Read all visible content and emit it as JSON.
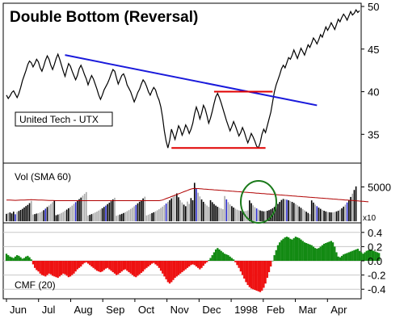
{
  "chart_data": {
    "type": "line",
    "title": "Double Bottom (Reversal)",
    "label": "United Tech - UTX",
    "x_tick_labels": [
      "Jun",
      "Jul",
      "Aug",
      "Sep",
      "Oct",
      "Nov",
      "Dec",
      "1998",
      "Feb",
      "Mar",
      "Apr"
    ],
    "price": {
      "ylim": [
        32,
        50
      ],
      "ticks": [
        35,
        40,
        45,
        50
      ],
      "values": [
        39.6,
        39.2,
        39.5,
        39.9,
        40.1,
        39.7,
        39.3,
        39.8,
        40.5,
        41.3,
        41.9,
        42.5,
        43.2,
        43.6,
        43.4,
        42.9,
        43.3,
        43.8,
        43.5,
        42.8,
        42.4,
        43.0,
        43.7,
        44.2,
        43.8,
        43.1,
        42.6,
        43.2,
        43.9,
        44.4,
        43.8,
        43.1,
        42.4,
        41.8,
        42.6,
        43.3,
        43.0,
        42.4,
        41.9,
        41.4,
        41.9,
        42.7,
        43.1,
        42.6,
        42.0,
        41.5,
        40.8,
        41.4,
        41.9,
        41.5,
        40.9,
        40.3,
        39.6,
        39.1,
        39.6,
        40.2,
        40.6,
        41.0,
        41.5,
        42.1,
        42.6,
        42.4,
        41.6,
        40.9,
        41.4,
        41.9,
        42.1,
        41.6,
        40.8,
        40.4,
        40.0,
        39.4,
        38.8,
        39.3,
        39.9,
        40.3,
        40.9,
        41.4,
        41.1,
        40.6,
        40.0,
        39.6,
        40.1,
        40.5,
        40.2,
        39.5,
        39.0,
        38.2,
        37.0,
        35.4,
        34.2,
        33.4,
        34.3,
        35.6,
        35.0,
        34.4,
        35.2,
        36.0,
        35.6,
        34.9,
        35.4,
        36.1,
        35.7,
        35.1,
        35.6,
        36.3,
        37.4,
        38.2,
        37.6,
        36.8,
        37.5,
        38.4,
        38.0,
        37.2,
        36.3,
        36.9,
        37.7,
        38.6,
        39.4,
        39.8,
        39.3,
        38.7,
        38.0,
        37.3,
        36.6,
        36.0,
        35.4,
        35.9,
        36.5,
        36.0,
        35.4,
        34.8,
        35.2,
        35.8,
        35.3,
        34.6,
        34.0,
        34.5,
        35.1,
        34.7,
        34.2,
        33.6,
        33.4,
        34.0,
        35.0,
        35.6,
        35.2,
        36.0,
        36.8,
        37.6,
        38.8,
        40.0,
        40.8,
        41.4,
        42.0,
        42.7,
        43.1,
        42.8,
        43.4,
        44.0,
        43.8,
        44.3,
        44.9,
        44.4,
        43.9,
        44.5,
        45.1,
        44.7,
        44.3,
        44.9,
        45.5,
        45.2,
        45.7,
        46.3,
        46.0,
        45.6,
        46.1,
        46.7,
        46.4,
        47.0,
        47.6,
        47.2,
        47.6,
        48.1,
        47.7,
        47.3,
        47.9,
        48.5,
        48.2,
        48.7,
        49.1,
        48.8,
        48.4,
        48.9,
        49.4,
        49.0,
        49.2,
        49.6,
        49.3,
        49.5
      ]
    },
    "trendline": {
      "from": 44.3,
      "to": 38.4
    },
    "resistance": 40.0,
    "support": 33.4,
    "volume": {
      "label": "Vol (SMA 60)",
      "ymax": 8000,
      "ticks": [
        5000
      ],
      "multiplier_label": "x10",
      "values": [
        1080,
        1210,
        1280,
        1140,
        1400,
        1020,
        1360,
        1500,
        1650,
        1810,
        2010,
        2210,
        2380,
        2640,
        2970,
        980,
        1040,
        1120,
        1180,
        1290,
        1430,
        1610,
        1840,
        2080,
        2300,
        2520,
        2780,
        3050,
        880,
        980,
        1080,
        1210,
        1350,
        1520,
        1700,
        1900,
        2080,
        2280,
        2530,
        2780,
        2960,
        3220,
        3450,
        3730,
        4000,
        4250,
        830,
        930,
        1040,
        1160,
        1280,
        1410,
        1560,
        1720,
        1900,
        2090,
        2280,
        2500,
        2710,
        2920,
        3180,
        3420,
        800,
        890,
        980,
        1080,
        1200,
        1330,
        1470,
        1620,
        1800,
        1970,
        2180,
        2380,
        2610,
        2850,
        3070,
        3330,
        3580,
        850,
        960,
        1070,
        1190,
        1310,
        1450,
        1600,
        1760,
        1940,
        2130,
        2350,
        2580,
        2820,
        3070,
        3330,
        3590,
        3860,
        4060,
        3500,
        3090,
        2740,
        2420,
        2190,
        2870,
        2520,
        3380,
        3060,
        5600,
        4800,
        4160,
        3620,
        3180,
        2830,
        2540,
        2290,
        2100,
        3070,
        2780,
        2510,
        2280,
        2110,
        1960,
        1860,
        1750,
        3680,
        3190,
        2780,
        2460,
        2200,
        2000,
        1840,
        1690,
        1590,
        1510,
        1460,
        1460,
        1500,
        1580,
        3040,
        2640,
        2320,
        2060,
        1870,
        1700,
        1570,
        1490,
        1450,
        1470,
        1530,
        1620,
        1740,
        1890,
        2080,
        2290,
        2530,
        2810,
        3100,
        3250,
        3210,
        3140,
        3060,
        2940,
        2820,
        2670,
        2510,
        2330,
        2140,
        1950,
        1760,
        1570,
        1390,
        1210,
        1040,
        3040,
        2720,
        2440,
        2200,
        1990,
        1810,
        1660,
        1530,
        1430,
        1360,
        1310,
        1290,
        1300,
        1350,
        1430,
        1540,
        1700,
        1890,
        2130,
        2420,
        2740,
        3100,
        3540,
        4020,
        4560,
        5080
      ],
      "sma": [
        3100,
        3090,
        3080,
        3070,
        3060,
        3050,
        3060,
        3070,
        3080,
        3090,
        3100,
        3110,
        3120,
        3130,
        3140,
        3130,
        3120,
        3110,
        3100,
        3090,
        3080,
        3070,
        3060,
        3050,
        3040,
        3030,
        3020,
        3010,
        3000,
        3000,
        3000,
        3000,
        3000,
        3000,
        3000,
        3000,
        3000,
        3000,
        3000,
        3000,
        3000,
        3000,
        3000,
        3000,
        3000,
        3000,
        3000,
        3000,
        3000,
        3000,
        3000,
        3000,
        3000,
        3000,
        3000,
        3000,
        3000,
        3000,
        3000,
        3000,
        3000,
        3000,
        3000,
        3000,
        3000,
        3000,
        3000,
        3000,
        3000,
        3000,
        3000,
        3000,
        3000,
        3000,
        3000,
        3000,
        3000,
        3000,
        3000,
        3000,
        3000,
        3000,
        3000,
        3000,
        3000,
        3000,
        3000,
        3050,
        3100,
        3200,
        3300,
        3400,
        3500,
        3600,
        3700,
        3800,
        3900,
        4000,
        4100,
        4200,
        4300,
        4400,
        4500,
        4600,
        4700,
        4750,
        4800,
        4780,
        4760,
        4740,
        4720,
        4700,
        4680,
        4660,
        4640,
        4620,
        4600,
        4580,
        4560,
        4540,
        4520,
        4500,
        4480,
        4460,
        4440,
        4420,
        4400,
        4380,
        4360,
        4340,
        4320,
        4300,
        4280,
        4260,
        4240,
        4220,
        4200,
        4180,
        4160,
        4140,
        4120,
        4100,
        4080,
        4060,
        4040,
        4020,
        4000,
        3980,
        3960,
        3940,
        3920,
        3900,
        3880,
        3860,
        3840,
        3820,
        3800,
        3780,
        3760,
        3740,
        3720,
        3700,
        3680,
        3660,
        3640,
        3620,
        3600,
        3580,
        3560,
        3540,
        3520,
        3500,
        3480,
        3460,
        3440,
        3420,
        3400,
        3380,
        3360,
        3340,
        3320,
        3300,
        3280,
        3260,
        3240,
        3220,
        3200,
        3180,
        3160,
        3140,
        3120,
        3100,
        3080,
        3060,
        3040,
        3020,
        3000,
        2980,
        2960,
        2940,
        2920,
        2900,
        2880,
        2860,
        2840
      ]
    },
    "cmf": {
      "label": "CMF (20)",
      "ylim": [
        -0.5,
        0.5
      ],
      "ticks": [
        0.4,
        0.2,
        0.0,
        -0.2,
        -0.4
      ],
      "tick_labels": [
        "0.4",
        "0.2",
        "0.0",
        "-0.2",
        "-0.4"
      ],
      "values": [
        0.1,
        0.08,
        0.06,
        0.05,
        0.04,
        0.06,
        0.08,
        0.07,
        0.05,
        0.03,
        0.04,
        0.06,
        0.07,
        0.05,
        0.02,
        -0.05,
        -0.1,
        -0.13,
        -0.15,
        -0.18,
        -0.2,
        -0.21,
        -0.22,
        -0.2,
        -0.18,
        -0.19,
        -0.21,
        -0.22,
        -0.23,
        -0.24,
        -0.22,
        -0.2,
        -0.18,
        -0.19,
        -0.21,
        -0.23,
        -0.22,
        -0.2,
        -0.18,
        -0.15,
        -0.12,
        -0.1,
        -0.08,
        -0.05,
        -0.03,
        -0.02,
        -0.04,
        -0.06,
        -0.08,
        -0.1,
        -0.12,
        -0.14,
        -0.15,
        -0.16,
        -0.15,
        -0.13,
        -0.11,
        -0.1,
        -0.12,
        -0.14,
        -0.16,
        -0.18,
        -0.2,
        -0.19,
        -0.17,
        -0.15,
        -0.13,
        -0.12,
        -0.14,
        -0.16,
        -0.18,
        -0.2,
        -0.22,
        -0.23,
        -0.21,
        -0.19,
        -0.17,
        -0.15,
        -0.12,
        -0.1,
        -0.08,
        -0.06,
        -0.04,
        -0.03,
        -0.05,
        -0.07,
        -0.1,
        -0.14,
        -0.18,
        -0.22,
        -0.26,
        -0.3,
        -0.32,
        -0.3,
        -0.27,
        -0.24,
        -0.22,
        -0.2,
        -0.18,
        -0.16,
        -0.14,
        -0.12,
        -0.1,
        -0.08,
        -0.06,
        -0.05,
        -0.06,
        -0.08,
        -0.1,
        -0.12,
        -0.1,
        -0.07,
        -0.04,
        -0.02,
        0.01,
        0.04,
        0.08,
        0.12,
        0.16,
        0.18,
        0.16,
        0.14,
        0.12,
        0.1,
        0.09,
        0.08,
        0.06,
        0.04,
        0.02,
        -0.02,
        -0.06,
        -0.1,
        -0.15,
        -0.2,
        -0.25,
        -0.3,
        -0.34,
        -0.37,
        -0.39,
        -0.4,
        -0.41,
        -0.42,
        -0.43,
        -0.44,
        -0.42,
        -0.38,
        -0.32,
        -0.24,
        -0.16,
        -0.08,
        0.0,
        0.08,
        0.15,
        0.22,
        0.26,
        0.29,
        0.31,
        0.33,
        0.34,
        0.33,
        0.31,
        0.3,
        0.32,
        0.34,
        0.33,
        0.32,
        0.3,
        0.28,
        0.26,
        0.25,
        0.24,
        0.23,
        0.22,
        0.2,
        0.18,
        0.17,
        0.18,
        0.2,
        0.22,
        0.24,
        0.25,
        0.26,
        0.27,
        0.28,
        0.26,
        0.2,
        0.12,
        0.06,
        0.05,
        0.07,
        0.09,
        0.1,
        0.11,
        0.12,
        0.13,
        0.14,
        0.15,
        0.16,
        0.17,
        0.14,
        0.12,
        0.1,
        0.12,
        0.14,
        0.15,
        0.16,
        0.15,
        0.14,
        0.13,
        0.12,
        0.11
      ]
    },
    "colors": {
      "trendline": "#1a1adb",
      "support_resistance": "#e00000",
      "volume_up": "#000000",
      "volume_down": "#aaaaaa",
      "volume_blue": "#2a2acc",
      "sma": "#b00000",
      "cmf_positive": "#138a13",
      "cmf_negative": "#ee1111",
      "highlight_circle": "#1b7a1b"
    }
  }
}
